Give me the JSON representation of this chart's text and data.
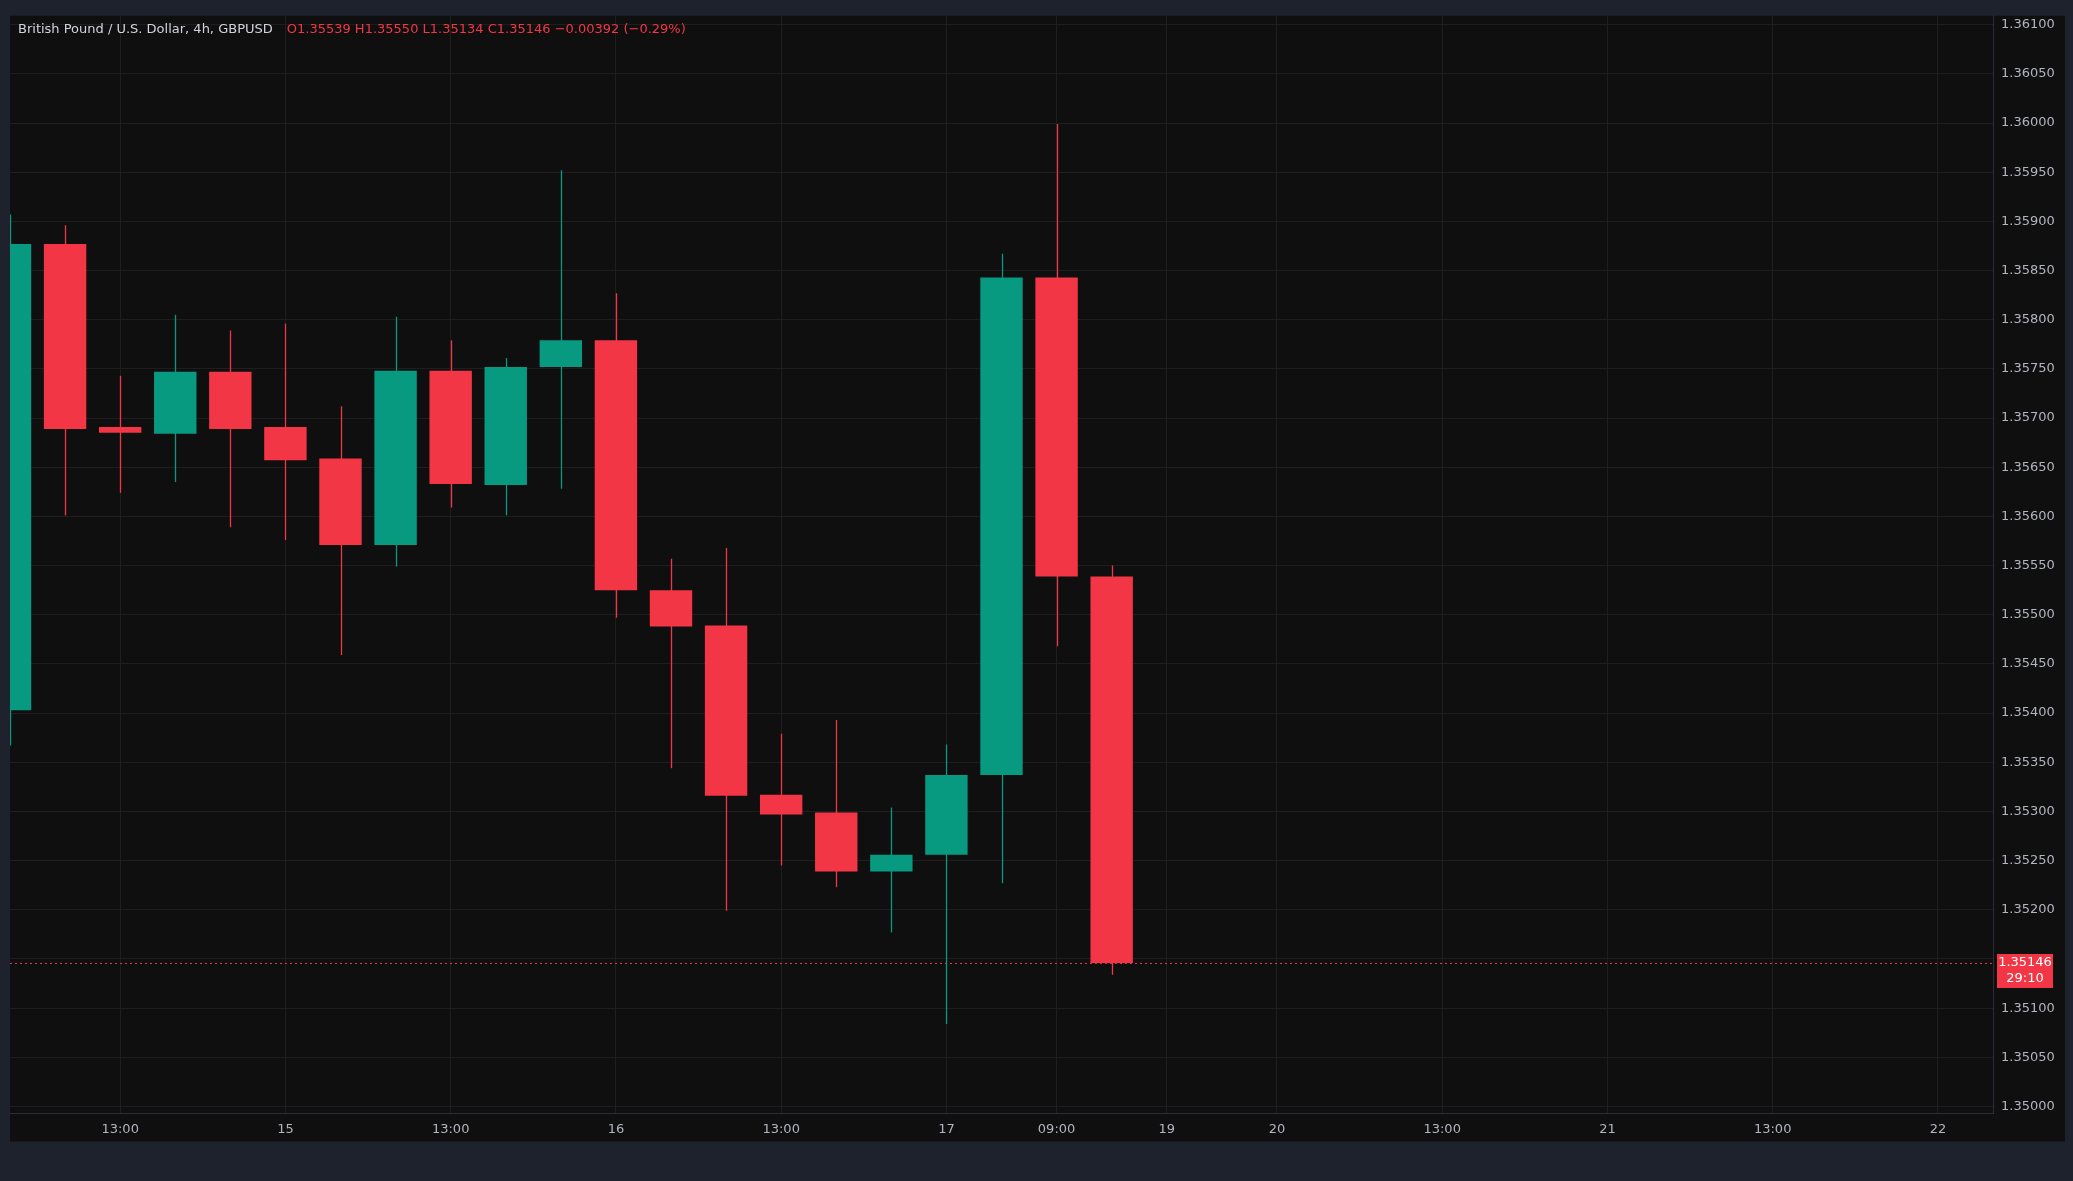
{
  "chart_data": {
    "type": "candlestick",
    "title": "British Pound / U.S. Dollar, 4h, GBPUSD",
    "subtitle": "O1.35539 H1.35550 L1.35134 C1.35146 −0.00392 (−0.29%)",
    "categories": [
      null,
      null,
      "13:00",
      null,
      null,
      "15",
      null,
      null,
      "13:00",
      null,
      null,
      "16",
      null,
      null,
      "13:00",
      null,
      null,
      "17",
      null,
      "09:00",
      null,
      "19",
      null,
      "20",
      null,
      null,
      "13:00",
      null,
      null,
      "21",
      null,
      null,
      "13:00",
      null,
      null,
      "22",
      null
    ],
    "ohlc": [
      [
        1.35403,
        1.35907,
        1.35367,
        1.35877
      ],
      [
        1.35877,
        1.35896,
        1.35601,
        1.35689
      ],
      [
        1.35691,
        1.35743,
        1.35624,
        1.35685
      ],
      [
        1.35684,
        1.35805,
        1.35635,
        1.35747
      ],
      [
        1.35747,
        1.35789,
        1.35589,
        1.35689
      ],
      [
        1.35691,
        1.35796,
        1.35576,
        1.35657
      ],
      [
        1.35659,
        1.35712,
        1.35459,
        1.35571
      ],
      [
        1.35571,
        1.35803,
        1.35549,
        1.35748
      ],
      [
        1.35748,
        1.35779,
        1.35609,
        1.35633
      ],
      [
        1.35632,
        1.35761,
        1.35601,
        1.35752
      ],
      [
        1.35752,
        1.35952,
        1.35628,
        1.35779
      ],
      [
        1.35779,
        1.35827,
        1.35497,
        1.35525
      ],
      [
        1.35525,
        1.35557,
        1.35344,
        1.35488
      ],
      [
        1.35489,
        1.35568,
        1.35199,
        1.35316
      ],
      [
        1.35317,
        1.35379,
        1.35245,
        1.35297
      ],
      [
        1.35299,
        1.35393,
        1.35223,
        1.35239
      ],
      [
        1.35239,
        1.35304,
        1.35177,
        1.35256
      ],
      [
        1.35256,
        1.35368,
        1.35084,
        1.35337
      ],
      [
        1.35337,
        1.35867,
        1.35227,
        1.35843
      ],
      [
        1.35843,
        1.35999,
        1.35468,
        1.35539
      ],
      [
        1.35539,
        1.3555,
        1.35134,
        1.35146
      ],
      null,
      null,
      null,
      null,
      null,
      null,
      null,
      null,
      null,
      null,
      null,
      null,
      null,
      null,
      null,
      null
    ],
    "colors": [
      "#089981",
      "#f23645",
      "#f23645",
      "#089981",
      "#f23645",
      "#f23645",
      "#f23645",
      "#089981",
      "#f23645",
      "#089981",
      "#089981",
      "#f23645",
      "#f23645",
      "#f23645",
      "#f23645",
      "#f23645",
      "#089981",
      "#089981",
      "#089981",
      "#f23645",
      "#f23645",
      null,
      null,
      null,
      null,
      null,
      null,
      null,
      null,
      null,
      null,
      null,
      null,
      null,
      null,
      null,
      null
    ],
    "ylim": [
      1.34993,
      1.36109
    ],
    "yticks": [
      {
        "value": 1.35,
        "label": "1.35000"
      },
      {
        "value": 1.3505,
        "label": "1.35050"
      },
      {
        "value": 1.351,
        "label": "1.35100"
      },
      {
        "value": 1.3515,
        "label": null
      },
      {
        "value": 1.352,
        "label": "1.35200"
      },
      {
        "value": 1.3525,
        "label": "1.35250"
      },
      {
        "value": 1.353,
        "label": "1.35300"
      },
      {
        "value": 1.3535,
        "label": "1.35350"
      },
      {
        "value": 1.354,
        "label": "1.35400"
      },
      {
        "value": 1.3545,
        "label": "1.35450"
      },
      {
        "value": 1.355,
        "label": "1.35500"
      },
      {
        "value": 1.3555,
        "label": "1.35550"
      },
      {
        "value": 1.356,
        "label": "1.35600"
      },
      {
        "value": 1.3565,
        "label": "1.35650"
      },
      {
        "value": 1.357,
        "label": "1.35700"
      },
      {
        "value": 1.3575,
        "label": "1.35750"
      },
      {
        "value": 1.358,
        "label": "1.35800"
      },
      {
        "value": 1.3585,
        "label": "1.35850"
      },
      {
        "value": 1.359,
        "label": "1.35900"
      },
      {
        "value": 1.3595,
        "label": "1.35950"
      },
      {
        "value": 1.36,
        "label": "1.36000"
      },
      {
        "value": 1.3605,
        "label": "1.36050"
      },
      {
        "value": 1.361,
        "label": "1.36100"
      }
    ],
    "ref_lines": [
      {
        "axis": "y",
        "value": 1.35146,
        "label": "1.35146",
        "color": "#f23645",
        "line_style": "dotted"
      }
    ],
    "annotations": [
      "29:10"
    ],
    "grid": true,
    "legend": false
  }
}
